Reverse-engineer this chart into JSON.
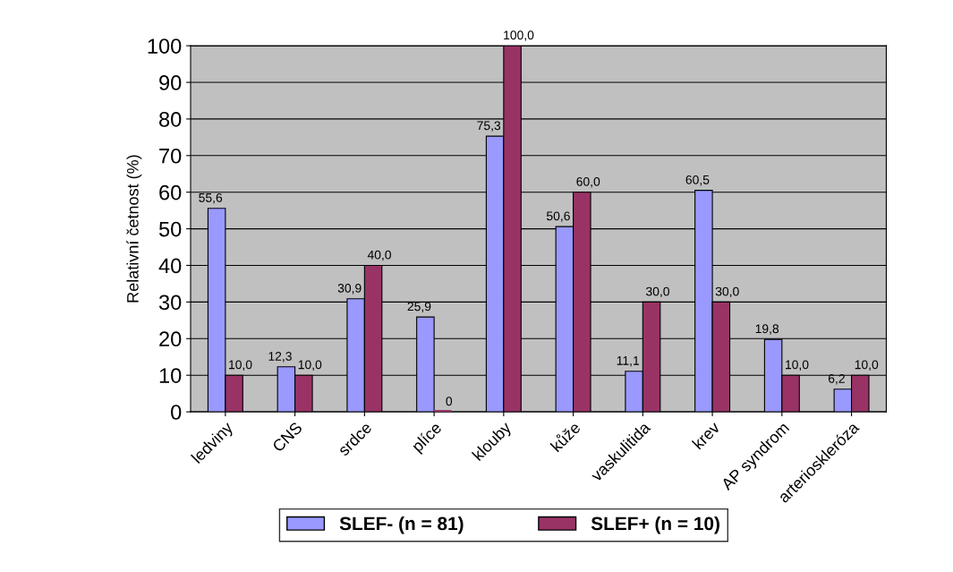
{
  "chart_data": {
    "type": "bar",
    "ylabel": "Relativní četnost (%)",
    "categories": [
      "ledviny",
      "CNS",
      "srdce",
      "plíce",
      "klouby",
      "kůže",
      "vaskulitida",
      "krev",
      "AP syndrom",
      "arterioskleróza"
    ],
    "series": [
      {
        "name": "SLEF- (n = 81)",
        "color": "#9999ff",
        "values": [
          55.6,
          12.3,
          30.9,
          25.9,
          75.3,
          50.6,
          11.1,
          60.5,
          19.8,
          6.2
        ],
        "value_labels": [
          "55,6",
          "12,3",
          "30,9",
          "25,9",
          "75,3",
          "50,6",
          "11,1",
          "60,5",
          "19,8",
          "6,2"
        ]
      },
      {
        "name": "SLEF+ (n = 10)",
        "color": "#993366",
        "values": [
          10.0,
          10.0,
          40.0,
          0,
          100.0,
          60.0,
          30.0,
          30.0,
          10.0,
          10.0
        ],
        "value_labels": [
          "10,0",
          "10,0",
          "40,0",
          "0",
          "100,0",
          "60,0",
          "30,0",
          "30,0",
          "10,0",
          "10,0"
        ]
      }
    ],
    "ylim": [
      0,
      100
    ],
    "yticks": [
      0,
      10,
      20,
      30,
      40,
      50,
      60,
      70,
      80,
      90,
      100
    ],
    "grid": "y",
    "legend": "bottom"
  }
}
